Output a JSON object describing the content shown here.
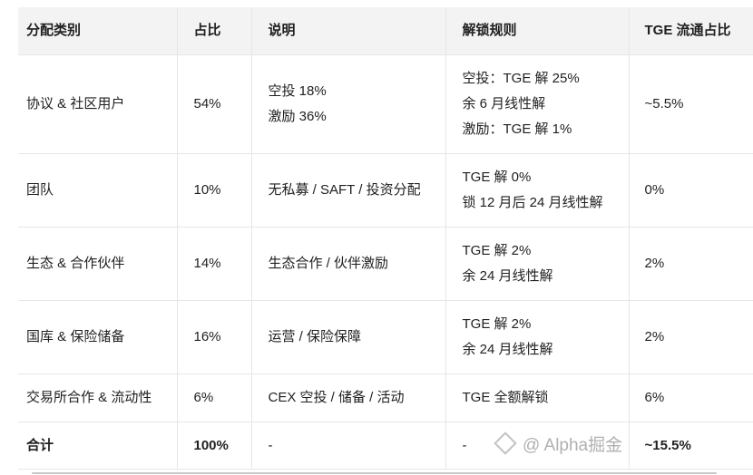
{
  "table": {
    "headers": [
      "分配类别",
      "占比",
      "说明",
      "解锁规则",
      "TGE 流通占比"
    ],
    "rows": [
      {
        "category": "协议 & 社区用户",
        "share": "54%",
        "desc": [
          "空投 18%",
          "激励 36%"
        ],
        "unlock": [
          "空投：TGE 解 25%",
          "余 6 月线性解",
          "激励：TGE 解 1%"
        ],
        "tge": "~5.5%"
      },
      {
        "category": "团队",
        "share": "10%",
        "desc": [
          "无私募 / SAFT / 投资分配"
        ],
        "unlock": [
          "TGE 解 0%",
          "锁 12 月后 24 月线性解"
        ],
        "tge": "0%"
      },
      {
        "category": "生态 & 合作伙伴",
        "share": "14%",
        "desc": [
          "生态合作 / 伙伴激励"
        ],
        "unlock": [
          "TGE 解 2%",
          "余 24 月线性解"
        ],
        "tge": "2%"
      },
      {
        "category": "国库 & 保险储备",
        "share": "16%",
        "desc": [
          "运营 / 保险保障"
        ],
        "unlock": [
          "TGE 解 2%",
          "余 24 月线性解"
        ],
        "tge": "2%"
      },
      {
        "category": "交易所合作 & 流动性",
        "share": "6%",
        "desc": [
          "CEX 空投 / 储备 / 活动"
        ],
        "unlock": [
          "TGE 全额解锁"
        ],
        "tge": "6%"
      }
    ],
    "total": {
      "category": "合计",
      "share": "100%",
      "desc": "-",
      "unlock": "-",
      "tge": "~15.5%"
    }
  },
  "watermark": "@ Alpha掘金"
}
